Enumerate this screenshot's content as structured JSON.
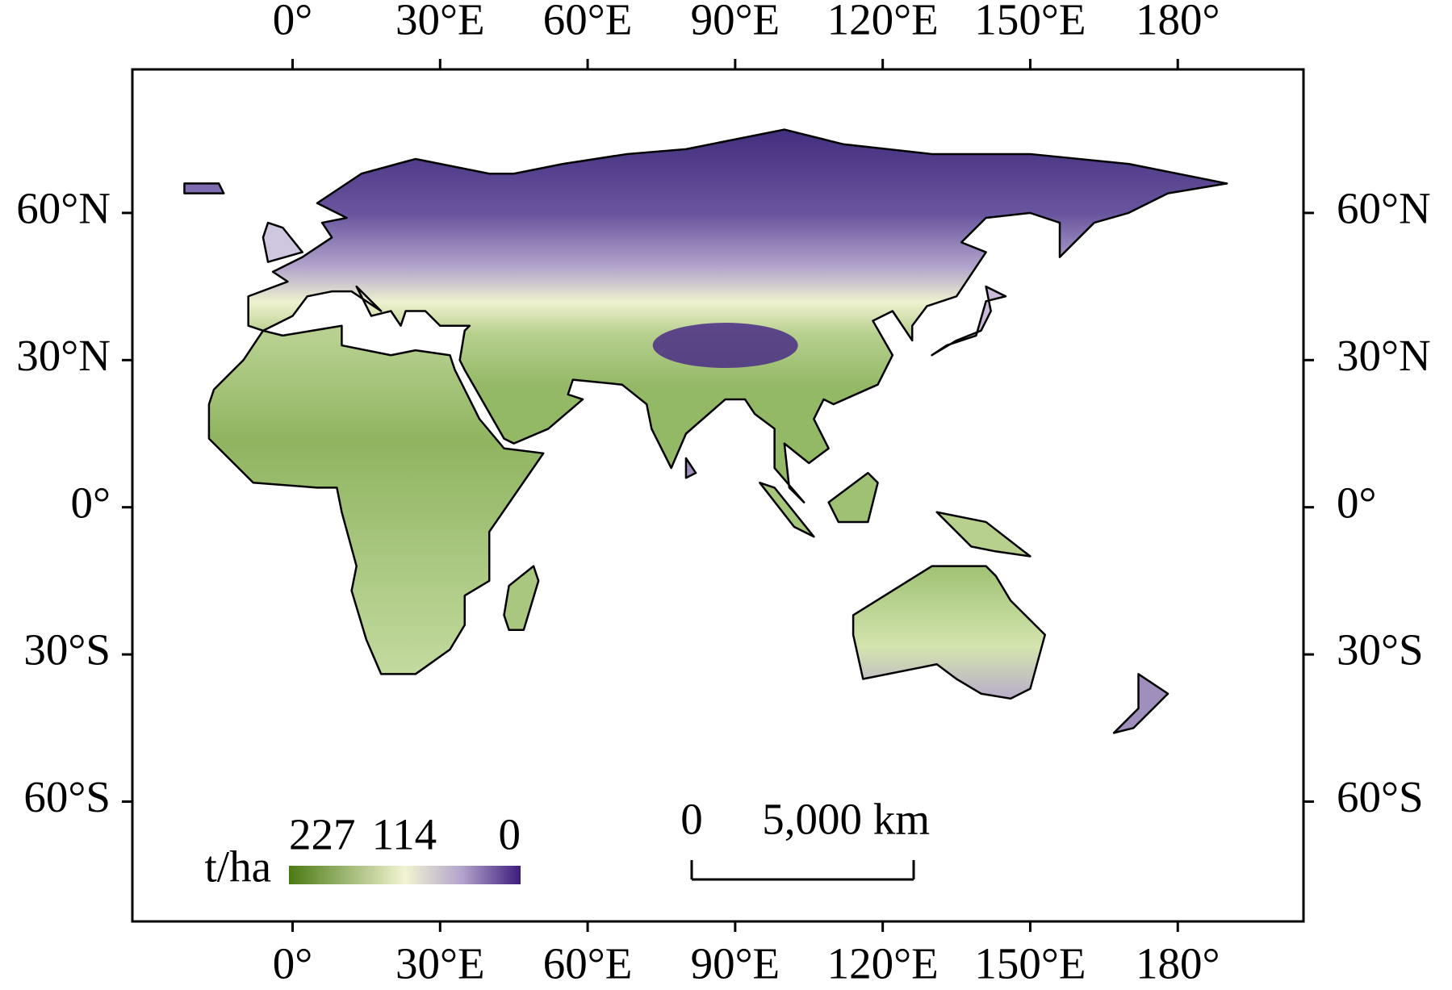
{
  "map": {
    "lon_ticks": [
      {
        "value": 0,
        "label": "0°"
      },
      {
        "value": 30,
        "label": "30°E"
      },
      {
        "value": 60,
        "label": "60°E"
      },
      {
        "value": 90,
        "label": "90°E"
      },
      {
        "value": 120,
        "label": "120°E"
      },
      {
        "value": 150,
        "label": "150°E"
      },
      {
        "value": 180,
        "label": "180°"
      }
    ],
    "lat_ticks": [
      {
        "value": 60,
        "label": "60°N"
      },
      {
        "value": 30,
        "label": "30°N"
      },
      {
        "value": 0,
        "label": "0°"
      },
      {
        "value": -30,
        "label": "30°S"
      },
      {
        "value": -60,
        "label": "60°S"
      }
    ],
    "legend": {
      "title": "t/ha",
      "ticks": [
        227,
        114,
        0
      ]
    },
    "scale_bar": {
      "ticks": [
        0,
        {
          "value": 5000,
          "label": "5,000 km"
        }
      ]
    }
  }
}
